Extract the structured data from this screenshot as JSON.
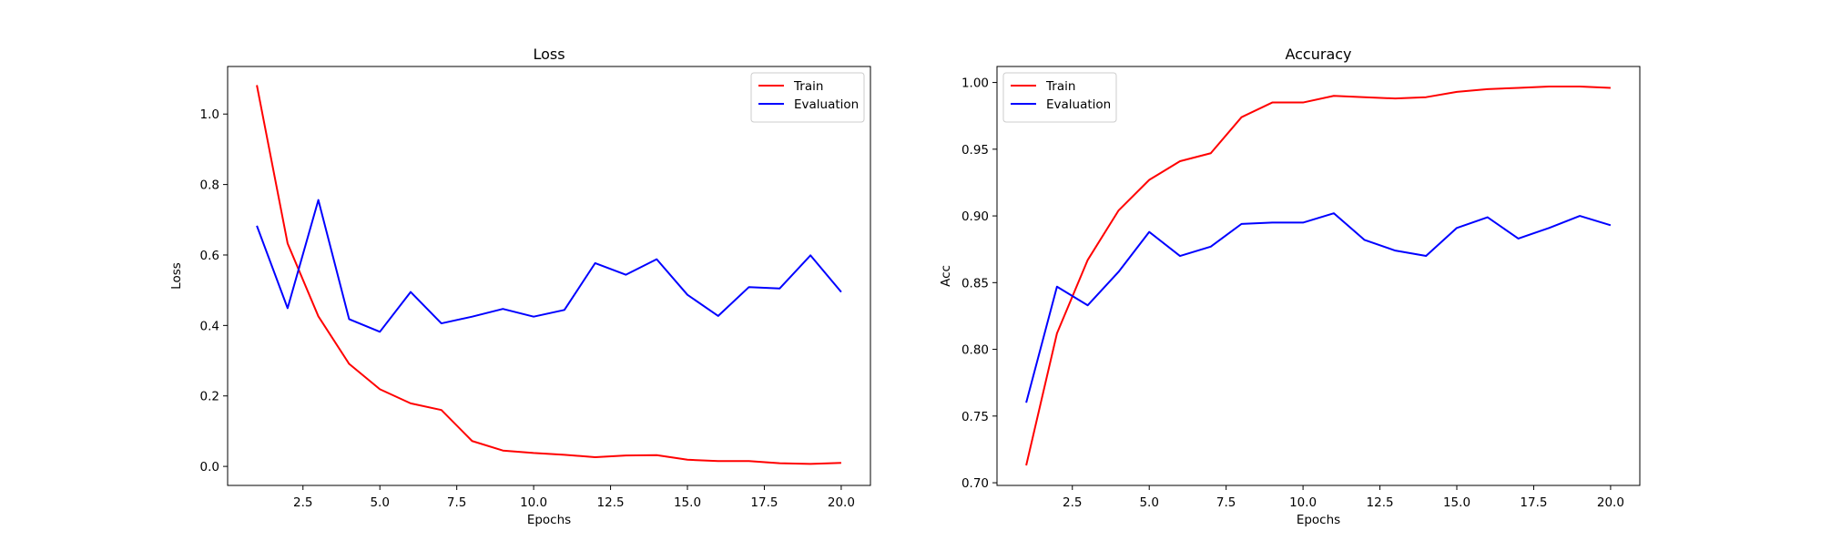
{
  "chart_data": [
    {
      "type": "line",
      "title": "Loss",
      "xlabel": "Epochs",
      "ylabel": "Loss",
      "xlim": [
        0.05,
        20.95
      ],
      "ylim": [
        -0.054,
        1.135
      ],
      "xticks": [
        2.5,
        5.0,
        7.5,
        10.0,
        12.5,
        15.0,
        17.5,
        20.0
      ],
      "xtick_labels": [
        "2.5",
        "5.0",
        "7.5",
        "10.0",
        "12.5",
        "15.0",
        "17.5",
        "20.0"
      ],
      "yticks": [
        0.0,
        0.2,
        0.4,
        0.6,
        0.8,
        1.0
      ],
      "ytick_labels": [
        "0.0",
        "0.2",
        "0.4",
        "0.6",
        "0.8",
        "1.0"
      ],
      "grid": false,
      "legend_position": "top-right",
      "x": [
        1,
        2,
        3,
        4,
        5,
        6,
        7,
        8,
        9,
        10,
        11,
        12,
        13,
        14,
        15,
        16,
        17,
        18,
        19,
        20
      ],
      "series": [
        {
          "name": "Train",
          "color": "#ff0000",
          "values": [
            1.082,
            0.633,
            0.426,
            0.291,
            0.219,
            0.179,
            0.16,
            0.072,
            0.045,
            0.038,
            0.033,
            0.026,
            0.031,
            0.032,
            0.019,
            0.015,
            0.015,
            0.009,
            0.007,
            0.01
          ]
        },
        {
          "name": "Evaluation",
          "color": "#0000ff",
          "values": [
            0.683,
            0.449,
            0.756,
            0.418,
            0.382,
            0.495,
            0.406,
            0.425,
            0.447,
            0.425,
            0.444,
            0.577,
            0.544,
            0.588,
            0.487,
            0.427,
            0.509,
            0.505,
            0.599,
            0.495
          ]
        }
      ]
    },
    {
      "type": "line",
      "title": "Accuracy",
      "xlabel": "Epochs",
      "ylabel": "Acc",
      "xlim": [
        0.05,
        20.95
      ],
      "ylim": [
        0.698,
        1.012
      ],
      "xticks": [
        2.5,
        5.0,
        7.5,
        10.0,
        12.5,
        15.0,
        17.5,
        20.0
      ],
      "xtick_labels": [
        "2.5",
        "5.0",
        "7.5",
        "10.0",
        "12.5",
        "15.0",
        "17.5",
        "20.0"
      ],
      "yticks": [
        0.7,
        0.75,
        0.8,
        0.85,
        0.9,
        0.95,
        1.0
      ],
      "ytick_labels": [
        "0.70",
        "0.75",
        "0.80",
        "0.85",
        "0.90",
        "0.95",
        "1.00"
      ],
      "grid": false,
      "legend_position": "top-left",
      "x": [
        1,
        2,
        3,
        4,
        5,
        6,
        7,
        8,
        9,
        10,
        11,
        12,
        13,
        14,
        15,
        16,
        17,
        18,
        19,
        20
      ],
      "series": [
        {
          "name": "Train",
          "color": "#ff0000",
          "values": [
            0.713,
            0.812,
            0.867,
            0.904,
            0.927,
            0.941,
            0.947,
            0.974,
            0.985,
            0.985,
            0.99,
            0.989,
            0.988,
            0.989,
            0.993,
            0.995,
            0.996,
            0.997,
            0.997,
            0.996
          ]
        },
        {
          "name": "Evaluation",
          "color": "#0000ff",
          "values": [
            0.76,
            0.847,
            0.833,
            0.858,
            0.888,
            0.87,
            0.877,
            0.894,
            0.895,
            0.895,
            0.902,
            0.882,
            0.874,
            0.87,
            0.891,
            0.899,
            0.883,
            0.891,
            0.9,
            0.893
          ]
        }
      ]
    }
  ]
}
